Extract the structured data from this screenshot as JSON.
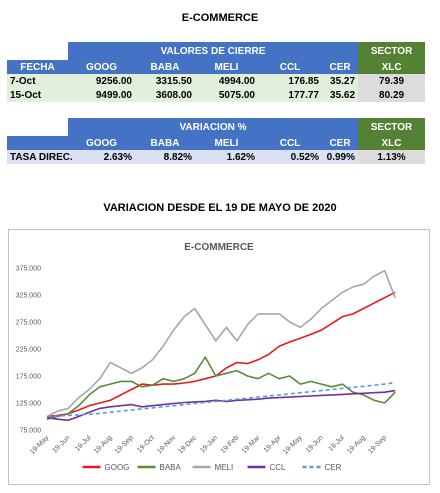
{
  "title": "E-COMMERCE",
  "table1": {
    "group_header": "VALORES DE CIERRE",
    "sector_header": "SECTOR",
    "columns": [
      "FECHA",
      "GOOG",
      "BABA",
      "MELI",
      "CCL",
      "CER",
      "XLC"
    ],
    "rows": [
      [
        "7-Oct",
        "9256.00",
        "3315.50",
        "4994.00",
        "176.85",
        "35.27",
        "79.39"
      ],
      [
        "15-Oct",
        "9499.00",
        "3608.00",
        "5075.00",
        "177.77",
        "35.62",
        "80.29"
      ]
    ]
  },
  "table2": {
    "group_header": "VARIACION %",
    "sector_header": "SECTOR",
    "columns": [
      "GOOG",
      "BABA",
      "MELI",
      "CCL",
      "CER",
      "XLC"
    ],
    "rows": [
      [
        "TASA DIREC.",
        "2.63%",
        "8.82%",
        "1.62%",
        "0.52%",
        "0.99%",
        "1.13%"
      ]
    ]
  },
  "subtitle": "VARIACION DESDE EL 19 DE MAYO DE 2020",
  "chart_data": {
    "type": "line",
    "title": "E-COMMERCE",
    "x": [
      0,
      0.5,
      1,
      1.5,
      2,
      2.5,
      3,
      3.5,
      4,
      4.5,
      5,
      5.5,
      6,
      6.5,
      7,
      7.5,
      8,
      8.5,
      9,
      9.5,
      10,
      10.5,
      11,
      11.5,
      12,
      12.5,
      13,
      13.5,
      14,
      14.5,
      15,
      15.5,
      16,
      16.5
    ],
    "xlim": [
      0,
      17.2
    ],
    "xticks": [
      {
        "value": 0,
        "label": "19-May"
      },
      {
        "value": 1,
        "label": "19-Jun"
      },
      {
        "value": 2,
        "label": "19-Jul"
      },
      {
        "value": 3,
        "label": "19-Aug"
      },
      {
        "value": 4,
        "label": "19-Sep"
      },
      {
        "value": 5,
        "label": "19-Oct"
      },
      {
        "value": 6,
        "label": "19-Nov"
      },
      {
        "value": 7,
        "label": "19-Dec"
      },
      {
        "value": 8,
        "label": "19-Jan"
      },
      {
        "value": 9,
        "label": "19-Feb"
      },
      {
        "value": 10,
        "label": "19-Mar"
      },
      {
        "value": 11,
        "label": "19-Apr"
      },
      {
        "value": 12,
        "label": "19-May"
      },
      {
        "value": 13,
        "label": "19-Jun"
      },
      {
        "value": 14,
        "label": "19-Jul"
      },
      {
        "value": 15,
        "label": "19-Aug"
      },
      {
        "value": 16,
        "label": "19-Sep"
      }
    ],
    "ylim": [
      75000,
      375000
    ],
    "yticks": [
      {
        "value": 75000,
        "label": "75.000"
      },
      {
        "value": 125000,
        "label": "125.000"
      },
      {
        "value": 175000,
        "label": "175.000"
      },
      {
        "value": 225000,
        "label": "225.000"
      },
      {
        "value": 275000,
        "label": "275.000"
      },
      {
        "value": 325000,
        "label": "325.000"
      },
      {
        "value": 375000,
        "label": "375.000"
      }
    ],
    "grid": false,
    "legend": "bottom",
    "series": [
      {
        "name": "GOOG",
        "color": "#e8191f",
        "dashed": false,
        "values": [
          100000,
          102000,
          105000,
          112000,
          120000,
          125000,
          130000,
          140000,
          150000,
          160000,
          158000,
          160000,
          160000,
          162000,
          165000,
          170000,
          175000,
          190000,
          200000,
          198000,
          205000,
          215000,
          230000,
          238000,
          245000,
          252000,
          260000,
          272000,
          285000,
          290000,
          300000,
          310000,
          320000,
          330000
        ]
      },
      {
        "name": "BABA",
        "color": "#5a8a3a",
        "dashed": false,
        "values": [
          95000,
          100000,
          105000,
          120000,
          140000,
          155000,
          160000,
          165000,
          165000,
          155000,
          158000,
          170000,
          165000,
          170000,
          180000,
          210000,
          175000,
          180000,
          185000,
          175000,
          170000,
          180000,
          170000,
          175000,
          160000,
          165000,
          160000,
          155000,
          160000,
          145000,
          140000,
          130000,
          125000,
          145000
        ]
      },
      {
        "name": "MELI",
        "color": "#a6a6a6",
        "dashed": false,
        "values": [
          100000,
          110000,
          115000,
          135000,
          150000,
          170000,
          200000,
          190000,
          180000,
          190000,
          205000,
          230000,
          260000,
          285000,
          300000,
          270000,
          240000,
          265000,
          240000,
          270000,
          290000,
          290000,
          290000,
          275000,
          265000,
          280000,
          300000,
          315000,
          330000,
          340000,
          345000,
          360000,
          370000,
          320000
        ]
      },
      {
        "name": "CCL",
        "color": "#7030a0",
        "dashed": false,
        "values": [
          98000,
          95000,
          93000,
          100000,
          108000,
          115000,
          118000,
          120000,
          122000,
          118000,
          120000,
          122000,
          124000,
          126000,
          127000,
          128000,
          130000,
          128000,
          130000,
          131000,
          132000,
          134000,
          135000,
          136000,
          137000,
          138000,
          139000,
          140000,
          141000,
          142000,
          143000,
          144000,
          145000,
          148000
        ]
      },
      {
        "name": "CER",
        "color": "#5b9bd5",
        "dashed": true,
        "values": [
          100000,
          101000,
          102000,
          103000,
          104000,
          106000,
          108000,
          110000,
          112000,
          114000,
          116000,
          118000,
          120000,
          122000,
          124000,
          126000,
          128000,
          130000,
          132000,
          134000,
          136000,
          138000,
          140000,
          142000,
          144000,
          146000,
          148000,
          150000,
          152000,
          154000,
          156000,
          158000,
          160000,
          163000
        ]
      }
    ]
  }
}
